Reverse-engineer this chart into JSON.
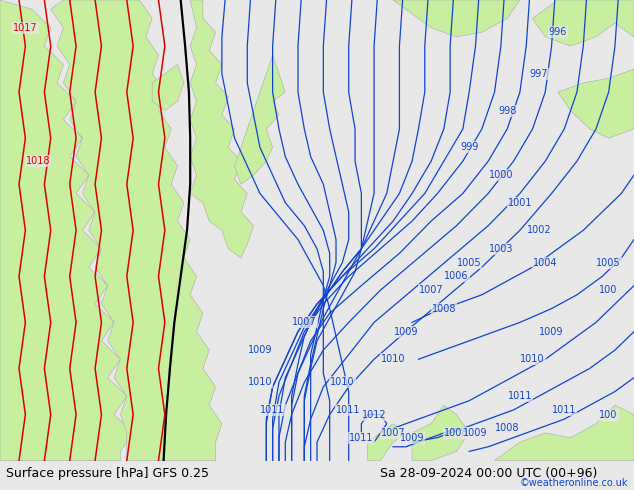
{
  "title_left": "Surface pressure [hPa] GFS 0.25",
  "title_right": "Sa 28-09-2024 00:00 UTC (00+96)",
  "credit": "©weatheronline.co.uk",
  "bg_color": "#e8e8e8",
  "land_color": "#c8eea0",
  "land_edge_color": "#aaaaaa",
  "red_line_color": "#dd0000",
  "black_line_color": "#000000",
  "blue_line_color": "#1144cc",
  "label_color_red": "#dd0000",
  "label_color_blue": "#1144cc",
  "font_size_title": 9,
  "font_size_label": 7,
  "font_size_credit": 7
}
